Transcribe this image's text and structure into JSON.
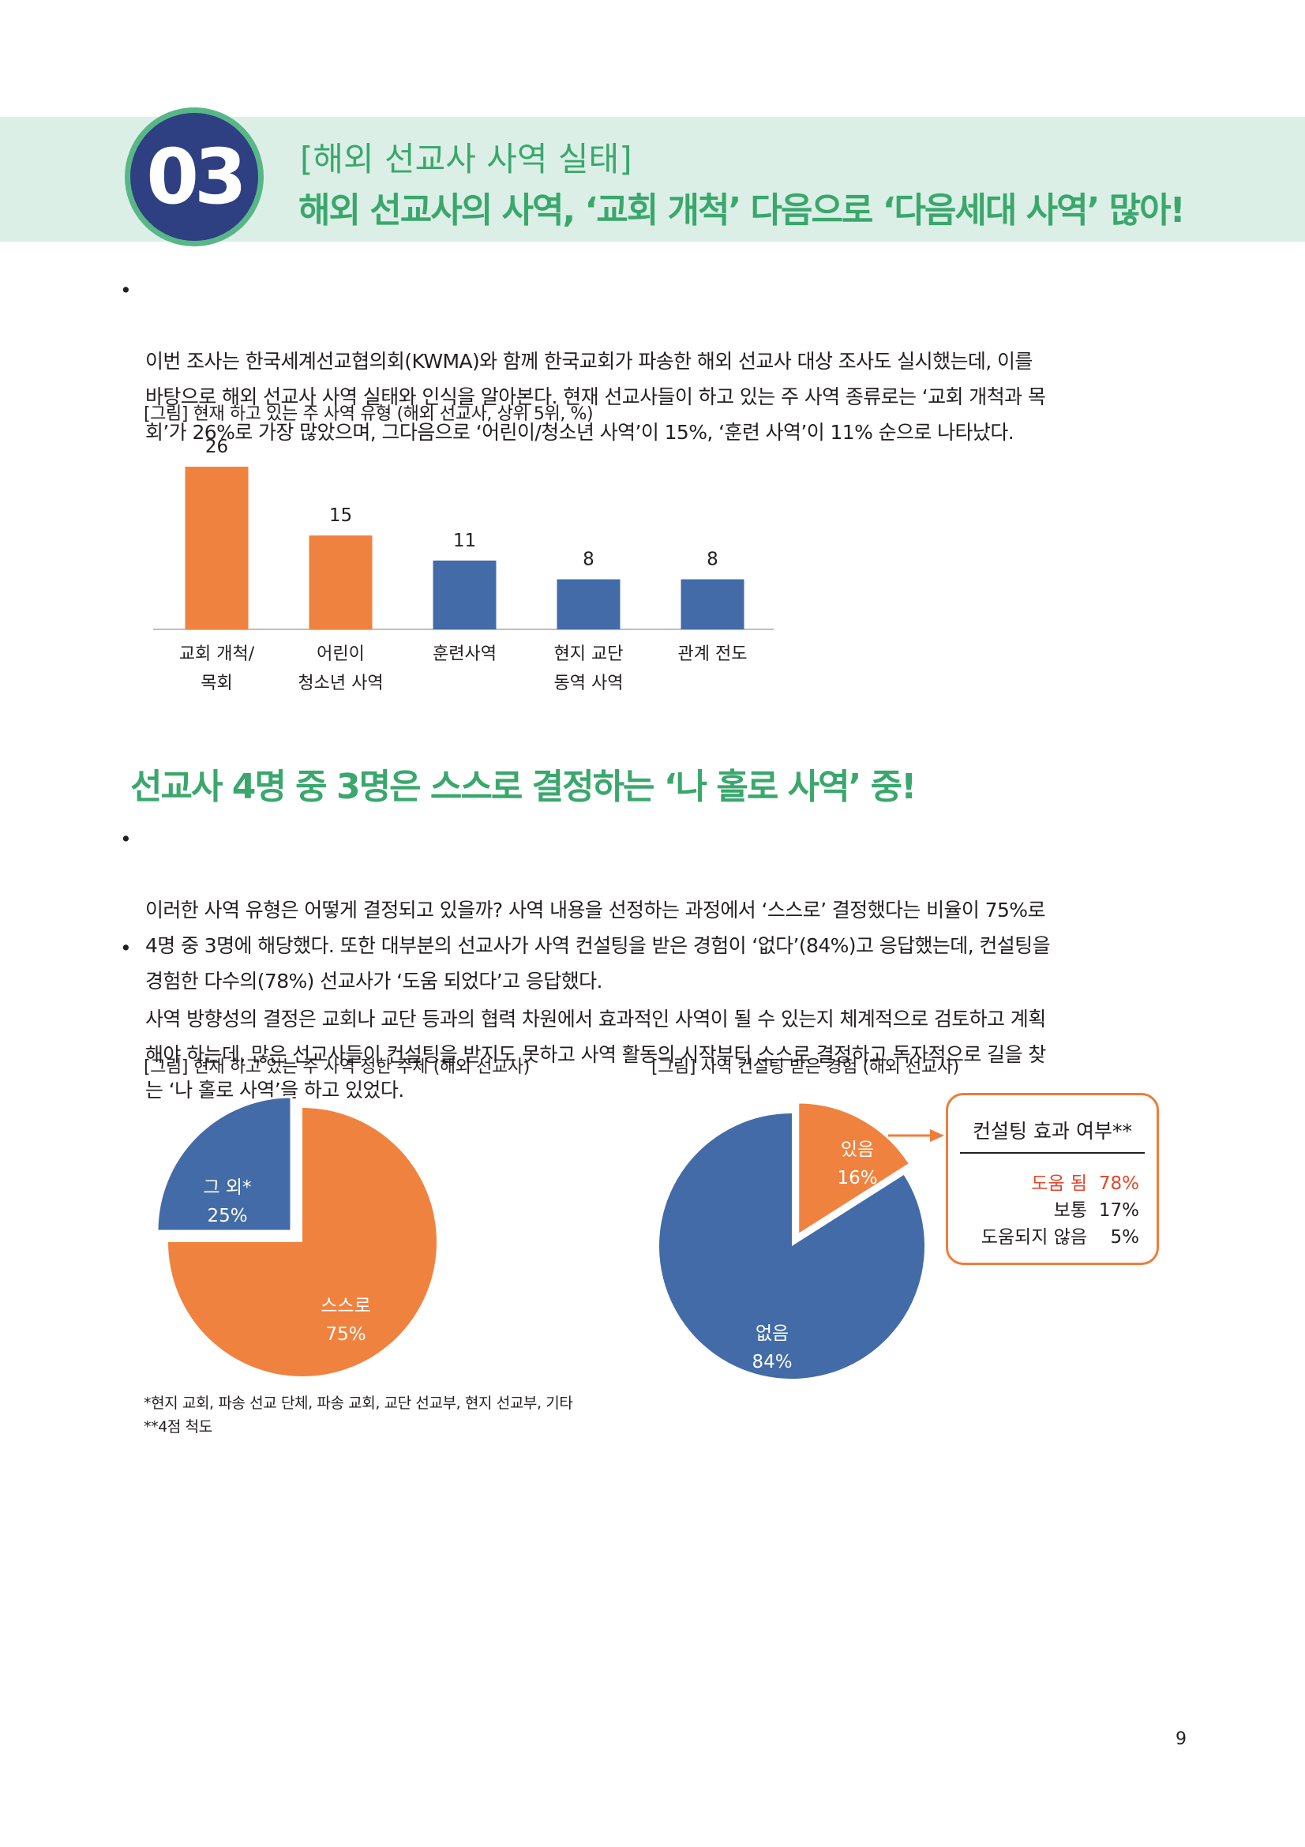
{
  "header": {
    "number": "03",
    "kicker": "[해외 선교사 사역 실태]",
    "headline": "해외 선교사의 사역, ‘교회 개척’ 다음으로 ‘다음세대 사역’ 많아!"
  },
  "intro": {
    "bullet": "•",
    "text": "이번 조사는 한국세계선교협의회(KWMA)와 함께 한국교회가 파송한 해외 선교사 대상 조사도 실시했는데, 이를\n바탕으로 해외 선교사 사역 실태와 인식을 알아본다. 현재 선교사들이 하고 있는 주 사역 종류로는 ‘교회 개척과 목\n회’가 26%로 가장 많았으며, 그다음으로 ‘어린이/청소년 사역’이 15%, ‘훈련 사역’이 11% 순으로 나타났다."
  },
  "bar_figure": {
    "caption": "[그림] 현재 하고 있는 주 사역 유형 (해외 선교사,  상위 5위, %)"
  },
  "chart_data": [
    {
      "type": "bar",
      "title": "[그림] 현재 하고 있는 주 사역 유형 (해외 선교사,  상위 5위, %)",
      "categories": [
        "교회 개척/\n목회",
        "어린이\n청소년 사역",
        "훈련사역",
        "현지 교단\n동역 사역",
        "관계 전도"
      ],
      "values": [
        26,
        15,
        11,
        8,
        8
      ],
      "value_labels": [
        "26",
        "15",
        "11",
        "8",
        "8"
      ],
      "colors": [
        "#f0823f",
        "#f0823f",
        "#426ba7",
        "#426ba7",
        "#426ba7"
      ],
      "ylim": [
        0,
        26
      ],
      "grid": false
    },
    {
      "type": "pie",
      "title": "[그림] 현재 하고 있는 주 사역 정한 주체 (해외 선교사)",
      "slices": [
        {
          "label": "스스로",
          "value": 75,
          "value_label": "75%",
          "color": "#f0823f"
        },
        {
          "label": "그 외*",
          "value": 25,
          "value_label": "25%",
          "color": "#426ba7"
        }
      ]
    },
    {
      "type": "pie",
      "title": "[그림] 사역 컨설팅 받은 경험 (해외 선교사)",
      "slices": [
        {
          "label": "있음",
          "value": 16,
          "value_label": "16%",
          "color": "#f0823f"
        },
        {
          "label": "없음",
          "value": 84,
          "value_label": "84%",
          "color": "#426ba7"
        }
      ]
    }
  ],
  "section2": {
    "title": "선교사 4명 중 3명은 스스로 결정하는 ‘나 홀로 사역’ 중!",
    "bullet1": "•",
    "text1": "이러한 사역 유형은 어떻게 결정되고 있을까? 사역 내용을 선정하는 과정에서 ‘스스로’ 결정했다는 비율이 75%로\n4명 중 3명에 해당했다. 또한 대부분의 선교사가 사역 컨설팅을 받은 경험이 ‘없다’(84%)고 응답했는데, 컨설팅을\n경험한 다수의(78%) 선교사가 ‘도움 되었다’고 응답했다.",
    "bullet2": "•",
    "text2": "사역 방향성의 결정은 교회나 교단 등과의 협력 차원에서 효과적인 사역이 될 수 있는지 체계적으로 검토하고 계획\n해야 하는데, 많은 선교사들이 컨설팅을 받지도 못하고 사역 활동의 시작부터 스스로 결정하고 독자적으로 길을 찾\n는 ‘나 홀로 사역’을 하고 있었다."
  },
  "pie1": {
    "caption": "[그림] 현재 하고 있는 주 사역 정한 주체 (해외 선교사)"
  },
  "pie2": {
    "caption": "[그림] 사역 컨설팅 받은 경험 (해외 선교사)"
  },
  "consult_box": {
    "title": "컨설팅 효과 여부**",
    "rows": [
      {
        "label": "도움 됨",
        "value": "78%"
      },
      {
        "label": "보통",
        "value": "17%"
      },
      {
        "label": "도움되지 않음",
        "value": "5%"
      }
    ]
  },
  "footnotes": {
    "note1": "*현지 교회, 파송 선교 단체, 파송 교회, 교단 선교부, 현지 선교부, 기타",
    "note2": "**4점 척도"
  },
  "page_number": "9"
}
